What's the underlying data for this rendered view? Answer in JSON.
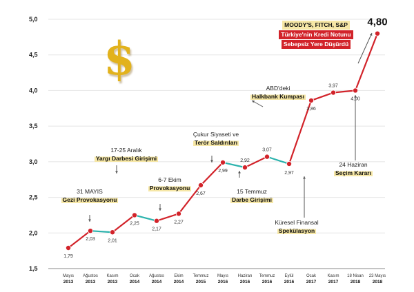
{
  "chart_data": {
    "type": "line",
    "title": "",
    "xlabel": "",
    "ylabel": "",
    "ylim": [
      1.5,
      5.0
    ],
    "yticks": [
      "1,5",
      "2,0",
      "2,5",
      "3,0",
      "3,5",
      "4,0",
      "4,5",
      "5,0"
    ],
    "x": [
      {
        "month": "Mayıs",
        "year": "2013"
      },
      {
        "month": "Ağustos",
        "year": "2013"
      },
      {
        "month": "Kasım",
        "year": "2013"
      },
      {
        "month": "Ocak",
        "year": "2014"
      },
      {
        "month": "Ağustos",
        "year": "2014"
      },
      {
        "month": "Ekim",
        "year": "2014"
      },
      {
        "month": "Temmuz",
        "year": "2015"
      },
      {
        "month": "Mayıs",
        "year": "2016"
      },
      {
        "month": "Haziran",
        "year": "2016"
      },
      {
        "month": "Temmuz",
        "year": "2016"
      },
      {
        "month": "Eylül",
        "year": "2016"
      },
      {
        "month": "Ocak",
        "year": "2017"
      },
      {
        "month": "Kasım",
        "year": "2017"
      },
      {
        "month": "18 Nisan",
        "year": "2018"
      },
      {
        "month": "23 Mayıs",
        "year": "2018"
      }
    ],
    "values": [
      1.79,
      2.03,
      2.01,
      2.25,
      2.17,
      2.27,
      2.67,
      2.99,
      2.92,
      3.07,
      2.97,
      3.86,
      3.97,
      4.0,
      4.8
    ],
    "value_labels": [
      "1,79",
      "2,03",
      "2,01",
      "2,25",
      "2,17",
      "2,27",
      "2,67",
      "2,99",
      "2,92",
      "3,07",
      "2,97",
      "3,86",
      "3,97",
      "4,00",
      "4,80"
    ],
    "segment_colors": [
      "#d2232a",
      "#2bb3ad",
      "#d2232a",
      "#2bb3ad",
      "#d2232a",
      "#d2232a",
      "#d2232a",
      "#2bb3ad",
      "#d2232a",
      "#2bb3ad",
      "#d2232a",
      "#d2232a",
      "#d2232a",
      "#d2232a"
    ],
    "point_color": "#d2232a",
    "grid": true,
    "annotations": [
      {
        "line1": "31 MAYIS",
        "line2": "Gezi Provokasyonu"
      },
      {
        "line1": "17-25 Aralık",
        "line2": "Yargı Darbesi Girişimi"
      },
      {
        "line1": "6-7 Ekim",
        "line2": "Provokasyonu"
      },
      {
        "line1": "Çukur Siyaseti ve",
        "line2": "Terör Saldırıları"
      },
      {
        "line1": "15 Temmuz",
        "line2": "Darbe Girişimi"
      },
      {
        "line1": "ABD'deki",
        "line2": "Halkbank Kumpası"
      },
      {
        "line1": "Küresel Finansal",
        "line2": "Spekülasyon"
      },
      {
        "line1": "24 Haziran",
        "line2": "Seçim Kararı"
      }
    ],
    "headline": {
      "line1": "MOODY'S, FITCH, S&P",
      "line2": "Türkiye'nin Kredi Notunu",
      "line3": "Sebepsiz Yere Düşürdü"
    }
  },
  "decor": {
    "dollar_symbol": "$",
    "dollar_icon": "gold-dollar-icon"
  }
}
